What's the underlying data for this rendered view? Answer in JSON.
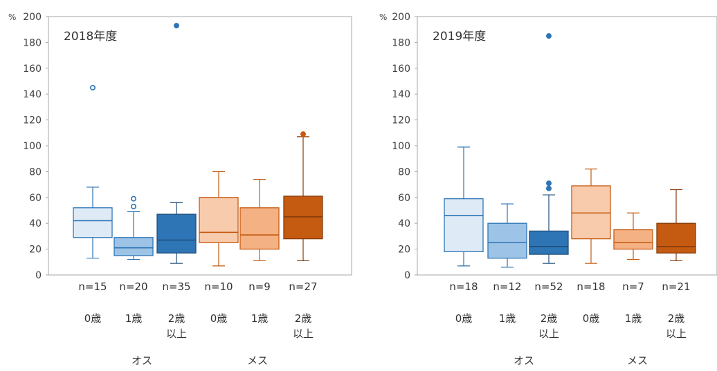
{
  "chart_data": [
    {
      "type": "boxplot",
      "title": "2018年度",
      "ylabel": "%",
      "ylim": [
        0,
        200
      ],
      "yticks": [
        0,
        20,
        40,
        60,
        80,
        100,
        120,
        140,
        160,
        180,
        200
      ],
      "grid": false,
      "groups": [
        {
          "sex": "オス",
          "age_lines": [
            "0歳"
          ],
          "n_label": "n=15",
          "color": "#deebf7",
          "whisker_low": 13,
          "q1": 29,
          "median": 42,
          "q3": 52,
          "whisker_high": 68,
          "outliers": [
            145
          ]
        },
        {
          "sex": "オス",
          "age_lines": [
            "1歳"
          ],
          "n_label": "n=20",
          "color": "#9dc3e6",
          "whisker_low": 12,
          "q1": 15,
          "median": 21,
          "q3": 29,
          "whisker_high": 49,
          "outliers": [
            53,
            59
          ]
        },
        {
          "sex": "オス",
          "age_lines": [
            "2歳",
            "以上"
          ],
          "n_label": "n=35",
          "color": "#2e75b6",
          "whisker_low": 9,
          "q1": 17,
          "median": 27,
          "q3": 47,
          "whisker_high": 56,
          "outliers": [
            193
          ]
        },
        {
          "sex": "メス",
          "age_lines": [
            "0歳"
          ],
          "n_label": "n=10",
          "color": "#f8cbad",
          "whisker_low": 7,
          "q1": 25,
          "median": 33,
          "q3": 60,
          "whisker_high": 80,
          "outliers": []
        },
        {
          "sex": "メス",
          "age_lines": [
            "1歳"
          ],
          "n_label": "n=9",
          "color": "#f4b183",
          "whisker_low": 11,
          "q1": 20,
          "median": 31,
          "q3": 52,
          "whisker_high": 74,
          "outliers": []
        },
        {
          "sex": "メス",
          "age_lines": [
            "2歳",
            "以上"
          ],
          "n_label": "n=27",
          "color": "#c55a11",
          "whisker_low": 11,
          "q1": 28,
          "median": 45,
          "q3": 61,
          "whisker_high": 107,
          "outliers": [
            109
          ]
        }
      ],
      "sex_labels": [
        "オス",
        "メス"
      ]
    },
    {
      "type": "boxplot",
      "title": "2019年度",
      "ylabel": "%",
      "ylim": [
        0,
        200
      ],
      "yticks": [
        0,
        20,
        40,
        60,
        80,
        100,
        120,
        140,
        160,
        180,
        200
      ],
      "grid": false,
      "groups": [
        {
          "sex": "オス",
          "age_lines": [
            "0歳"
          ],
          "n_label": "n=18",
          "color": "#deebf7",
          "whisker_low": 7,
          "q1": 18,
          "median": 46,
          "q3": 59,
          "whisker_high": 99,
          "outliers": []
        },
        {
          "sex": "オス",
          "age_lines": [
            "1歳"
          ],
          "n_label": "n=12",
          "color": "#9dc3e6",
          "whisker_low": 6,
          "q1": 13,
          "median": 25,
          "q3": 40,
          "whisker_high": 55,
          "outliers": []
        },
        {
          "sex": "オス",
          "age_lines": [
            "2歳",
            "以上"
          ],
          "n_label": "n=52",
          "color": "#2e75b6",
          "whisker_low": 9,
          "q1": 16,
          "median": 22,
          "q3": 34,
          "whisker_high": 62,
          "outliers": [
            67,
            71,
            185
          ]
        },
        {
          "sex": "メス",
          "age_lines": [
            "0歳"
          ],
          "n_label": "n=18",
          "color": "#f8cbad",
          "whisker_low": 9,
          "q1": 28,
          "median": 48,
          "q3": 69,
          "whisker_high": 82,
          "outliers": []
        },
        {
          "sex": "メス",
          "age_lines": [
            "1歳"
          ],
          "n_label": "n=7",
          "color": "#f4b183",
          "whisker_low": 12,
          "q1": 20,
          "median": 25,
          "q3": 35,
          "whisker_high": 48,
          "outliers": []
        },
        {
          "sex": "メス",
          "age_lines": [
            "2歳",
            "以上"
          ],
          "n_label": "n=21",
          "color": "#c55a11",
          "whisker_low": 11,
          "q1": 17,
          "median": 22,
          "q3": 40,
          "whisker_high": 66,
          "outliers": []
        }
      ],
      "sex_labels": [
        "オス",
        "メス"
      ]
    }
  ]
}
